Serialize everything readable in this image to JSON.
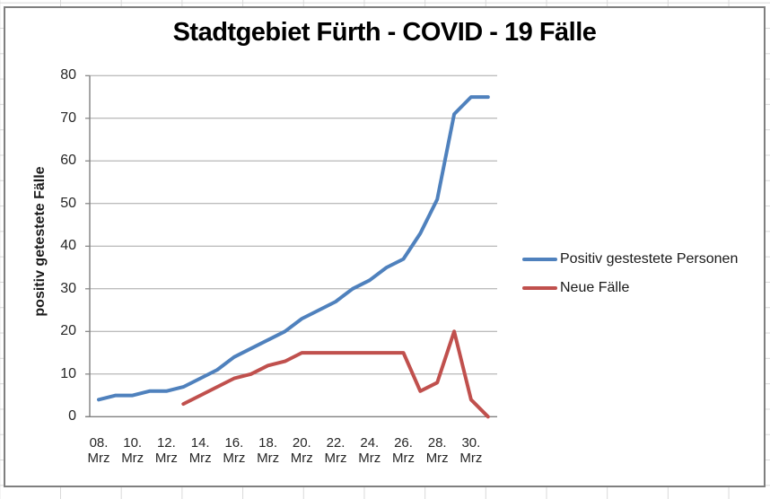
{
  "spreadsheet": {
    "grid_color": "#d9d9d9"
  },
  "chart": {
    "title": "Stadtgebiet Fürth - COVID - 19 Fälle",
    "y_axis": {
      "title": "positiv getestete Fälle",
      "ticks": [
        0,
        10,
        20,
        30,
        40,
        50,
        60,
        70,
        80
      ]
    },
    "x_axis": {
      "tick_days": [
        "08.",
        "10.",
        "12.",
        "14.",
        "16.",
        "18.",
        "20.",
        "22.",
        "24.",
        "26.",
        "28.",
        "30."
      ],
      "tick_month": "Mrz"
    },
    "legend": {
      "items": [
        {
          "label": "Positiv gestestete Personen",
          "color": "#4F81BD"
        },
        {
          "label": "Neue Fälle",
          "color": "#C0504D"
        }
      ]
    },
    "colors": {
      "gridline": "#A6A6A6",
      "axis": "#808080",
      "frame_border": "#7f7f7f"
    }
  },
  "chart_data": {
    "type": "line",
    "title": "Stadtgebiet Fürth - COVID - 19 Fälle",
    "xlabel": "",
    "ylabel": "positiv getestete Fälle",
    "ylim": [
      0,
      80
    ],
    "ytick_step": 10,
    "grid": "horizontal",
    "legend_position": "right",
    "x": [
      8,
      9,
      10,
      11,
      12,
      13,
      14,
      15,
      16,
      17,
      18,
      19,
      20,
      21,
      22,
      23,
      24,
      25,
      26,
      27,
      28,
      29,
      30,
      31
    ],
    "x_unit": "Tag im März (Mrz)",
    "xtick_labels": [
      "08. Mrz",
      "10. Mrz",
      "12. Mrz",
      "14. Mrz",
      "16. Mrz",
      "18. Mrz",
      "20. Mrz",
      "22. Mrz",
      "24. Mrz",
      "26. Mrz",
      "28. Mrz",
      "30. Mrz"
    ],
    "series": [
      {
        "name": "Positiv gestestete Personen",
        "color": "#4F81BD",
        "values": [
          4,
          5,
          5,
          6,
          6,
          7,
          9,
          11,
          14,
          16,
          18,
          20,
          23,
          25,
          27,
          30,
          32,
          35,
          37,
          43,
          51,
          71,
          75,
          75
        ]
      },
      {
        "name": "Neue Fälle",
        "color": "#C0504D",
        "values": [
          null,
          null,
          null,
          null,
          null,
          3,
          5,
          7,
          9,
          10,
          12,
          13,
          15,
          15,
          15,
          15,
          15,
          15,
          15,
          6,
          8,
          20,
          4,
          0
        ]
      }
    ]
  }
}
